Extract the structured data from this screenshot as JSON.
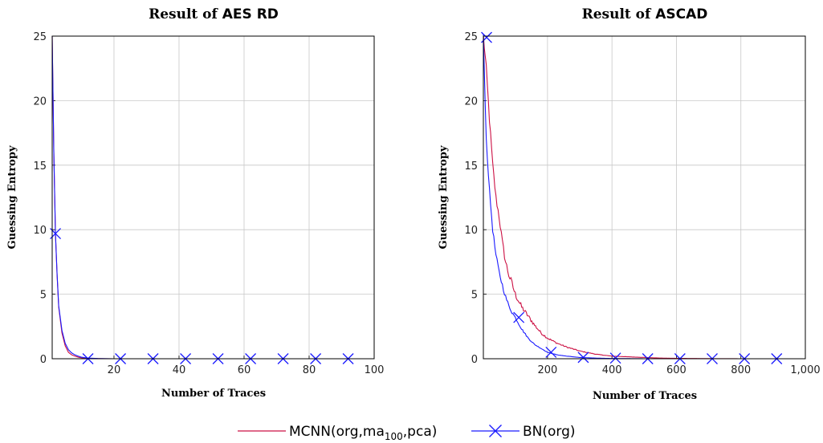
{
  "legend": {
    "items": [
      {
        "label": "MCNN(org,ma",
        "sub": "100",
        "label_after": ",pca)",
        "color": "#cc1144",
        "marker": "none"
      },
      {
        "label": "BN(org)",
        "color": "#1a1aff",
        "marker": "x"
      }
    ]
  },
  "chart_data": [
    {
      "type": "line",
      "title_prefix": "Result of ",
      "title_name": "AES RD",
      "xlabel": "Number of Traces",
      "ylabel": "Guessing Entropy",
      "xlim": [
        1,
        100
      ],
      "ylim": [
        0,
        25
      ],
      "xticks": [
        20,
        40,
        60,
        80,
        100
      ],
      "xtick_labels": [
        "20",
        "40",
        "60",
        "80",
        "100"
      ],
      "yticks": [
        0,
        5,
        10,
        15,
        20,
        25
      ],
      "ytick_labels": [
        "0",
        "5",
        "10",
        "15",
        "20",
        "25"
      ],
      "grid": true,
      "series": [
        {
          "name": "MCNN(org,ma100,pca)",
          "color": "#cc1144",
          "x": [
            1,
            1.5,
            2,
            2.5,
            3,
            4,
            5,
            6,
            7,
            8,
            9,
            10,
            12,
            15,
            20,
            30,
            40,
            50,
            60,
            70,
            80,
            90,
            100
          ],
          "y": [
            25,
            16,
            9.7,
            6.5,
            4.0,
            2.0,
            1.0,
            0.5,
            0.3,
            0.2,
            0.12,
            0.07,
            0.03,
            0.01,
            0,
            0,
            0,
            0,
            0,
            0,
            0,
            0,
            0
          ]
        },
        {
          "name": "BN(org)",
          "color": "#1a1aff",
          "x": [
            1,
            1.5,
            2,
            2.5,
            3,
            4,
            5,
            6,
            7,
            8,
            9,
            10,
            12,
            15,
            20,
            30,
            40,
            50,
            60,
            70,
            80,
            90,
            100
          ],
          "y": [
            25,
            16,
            9.7,
            6.6,
            4.1,
            2.2,
            1.2,
            0.7,
            0.45,
            0.3,
            0.2,
            0.12,
            0.05,
            0.02,
            0,
            0,
            0,
            0,
            0,
            0,
            0,
            0,
            0
          ],
          "markers_x": [
            2,
            12,
            22,
            32,
            42,
            52,
            62,
            72,
            82,
            92
          ],
          "markers_y": [
            9.7,
            0,
            0,
            0,
            0,
            0,
            0,
            0,
            0,
            0
          ]
        }
      ]
    },
    {
      "type": "line",
      "title_prefix": "Result of ",
      "title_name": "ASCAD",
      "xlabel": "Number of Traces",
      "ylabel": "Guessing Entropy",
      "xlim": [
        1,
        1000
      ],
      "ylim": [
        0,
        25
      ],
      "xticks": [
        200,
        400,
        600,
        800,
        1000
      ],
      "xtick_labels": [
        "200",
        "400",
        "600",
        "800",
        "1,000"
      ],
      "yticks": [
        0,
        5,
        10,
        15,
        20,
        25
      ],
      "ytick_labels": [
        "0",
        "5",
        "10",
        "15",
        "20",
        "25"
      ],
      "grid": true,
      "series": [
        {
          "name": "MCNN(org,ma100,pca)",
          "color": "#cc1144",
          "x": [
            1,
            10,
            20,
            30,
            40,
            50,
            60,
            70,
            80,
            90,
            100,
            120,
            140,
            160,
            180,
            200,
            230,
            260,
            300,
            350,
            400,
            450,
            500,
            550,
            600,
            700,
            800,
            900,
            1000
          ],
          "y": [
            25,
            22.5,
            18.5,
            15.0,
            12.5,
            11.0,
            9.0,
            7.5,
            6.5,
            5.8,
            5.0,
            4.0,
            3.3,
            2.6,
            2.0,
            1.6,
            1.2,
            0.9,
            0.6,
            0.35,
            0.2,
            0.15,
            0.1,
            0.05,
            0.03,
            0.01,
            0,
            0,
            0
          ],
          "noise": 0.6
        },
        {
          "name": "BN(org)",
          "color": "#1a1aff",
          "x": [
            1,
            10,
            20,
            30,
            40,
            50,
            60,
            70,
            80,
            90,
            100,
            120,
            140,
            160,
            180,
            200,
            230,
            260,
            300,
            350,
            400,
            450,
            500,
            600,
            700,
            800,
            900,
            1000
          ],
          "y": [
            25,
            17.0,
            13.0,
            10.0,
            8.0,
            6.7,
            5.7,
            4.8,
            4.1,
            3.6,
            3.2,
            2.3,
            1.6,
            1.1,
            0.8,
            0.5,
            0.3,
            0.2,
            0.1,
            0.05,
            0.02,
            0.01,
            0,
            0,
            0,
            0,
            0,
            0
          ],
          "markers_x": [
            11,
            111,
            211,
            311,
            411,
            511,
            611,
            711,
            811,
            911
          ],
          "markers_y": [
            24.9,
            3.2,
            0.5,
            0.1,
            0.05,
            0,
            0,
            0,
            0,
            0
          ],
          "noise": 0.4
        }
      ]
    }
  ]
}
